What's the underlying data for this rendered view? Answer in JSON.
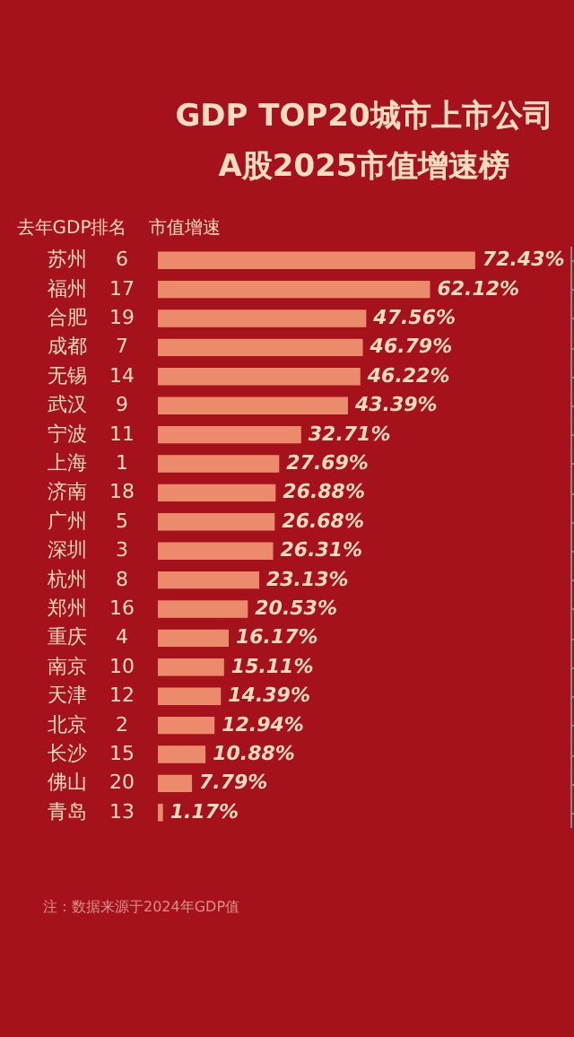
{
  "chart_data": {
    "type": "bar",
    "orientation": "horizontal",
    "title": "GDP TOP20城市上市公司\nA股2025市值增速榜",
    "categories": [
      "苏州",
      "福州",
      "合肥",
      "成都",
      "无锡",
      "武汉",
      "宁波",
      "上海",
      "济南",
      "广州",
      "深圳",
      "杭州",
      "郑州",
      "重庆",
      "南京",
      "天津",
      "北京",
      "长沙",
      "佛山",
      "青岛"
    ],
    "values": [
      72.43,
      62.12,
      47.56,
      46.79,
      46.22,
      43.39,
      32.71,
      27.69,
      26.88,
      26.68,
      26.31,
      23.13,
      20.53,
      16.17,
      15.11,
      14.39,
      12.94,
      10.88,
      7.79,
      1.17
    ],
    "value_labels": [
      "72.43%",
      "62.12%",
      "47.56%",
      "46.79%",
      "46.22%",
      "43.39%",
      "32.71%",
      "27.69%",
      "26.88%",
      "26.68%",
      "26.31%",
      "23.13%",
      "20.53%",
      "16.17%",
      "15.11%",
      "14.39%",
      "12.94%",
      "10.88%",
      "7.79%",
      "1.17%"
    ],
    "color": "#eb8b6c",
    "annotations": [
      "去年GDP排名",
      "市值增速",
      "6",
      "17",
      "19",
      "7",
      "14",
      "9",
      "11",
      "1",
      "18",
      "5",
      "3",
      "8",
      "16",
      "4",
      "10",
      "12",
      "2",
      "15",
      "20",
      "13",
      "注：数据来源于2024年GDP值"
    ],
    "grid": false
  }
}
